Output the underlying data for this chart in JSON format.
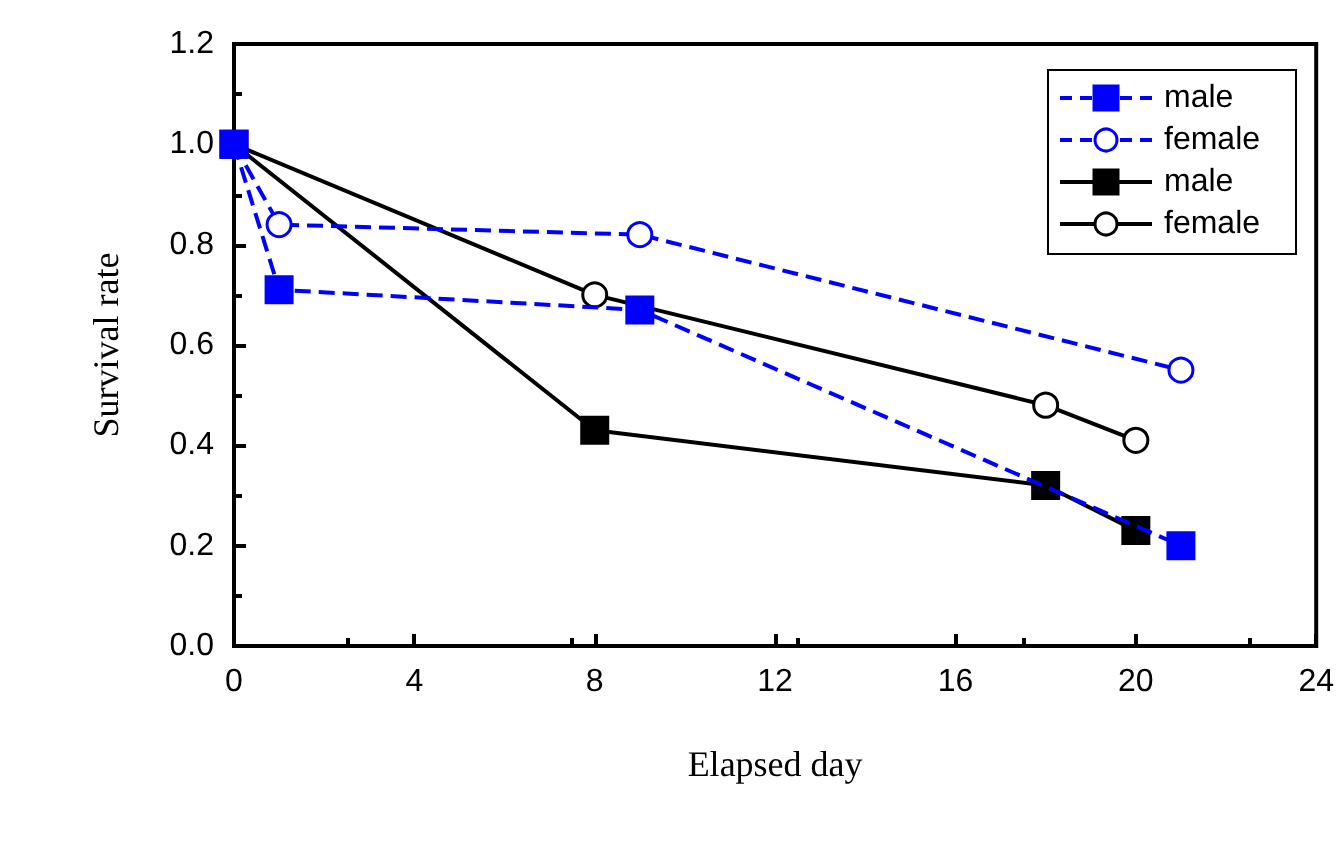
{
  "chart_data": {
    "type": "line",
    "xlabel": "Elapsed day",
    "ylabel": "Survival rate",
    "xlim": [
      0,
      24
    ],
    "xticks": [
      0,
      4,
      8,
      12,
      16,
      20,
      24
    ],
    "ylim": [
      0,
      1.2
    ],
    "yticks": [
      {
        "value": 0,
        "label": "0.0"
      },
      {
        "value": 0.2,
        "label": "0.2"
      },
      {
        "value": 0.4,
        "label": "0.4"
      },
      {
        "value": 0.6,
        "label": "0.6"
      },
      {
        "value": 0.8,
        "label": "0.8"
      },
      {
        "value": 1,
        "label": "1.0"
      },
      {
        "value": 1.2,
        "label": "1.2"
      }
    ],
    "grid": false,
    "legend": "top right",
    "series": [
      {
        "name": "male",
        "color": "#0000ff",
        "marker": "square",
        "line_style": "dashed",
        "x": [
          0,
          1,
          9,
          21
        ],
        "values": [
          1.0,
          0.71,
          0.67,
          0.2
        ]
      },
      {
        "name": "female",
        "color": "#0000ff",
        "marker": "circle",
        "line_style": "dashed",
        "x": [
          0,
          1,
          9,
          21
        ],
        "values": [
          1.0,
          0.84,
          0.82,
          0.55
        ]
      },
      {
        "name": "male",
        "color": "#000000",
        "marker": "square",
        "line_style": "solid",
        "x": [
          0,
          8,
          18,
          20
        ],
        "values": [
          1.0,
          0.43,
          0.32,
          0.23
        ]
      },
      {
        "name": "female",
        "color": "#000000",
        "marker": "circle",
        "line_style": "solid",
        "x": [
          0,
          8,
          18,
          20
        ],
        "values": [
          1.0,
          0.7,
          0.48,
          0.41
        ]
      }
    ]
  }
}
